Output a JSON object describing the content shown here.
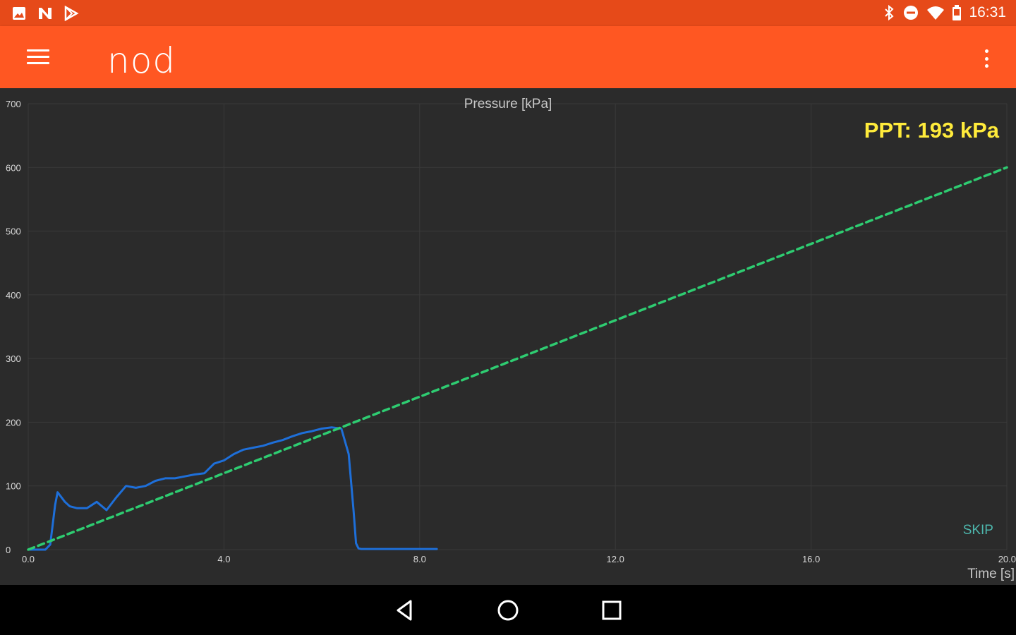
{
  "status_bar": {
    "time": "16:31",
    "left_icons": [
      "image-icon",
      "n-notification-icon",
      "play-store-icon"
    ],
    "right_icons": [
      "bluetooth-icon",
      "do-not-disturb-icon",
      "wifi-icon",
      "battery-icon"
    ]
  },
  "app_bar": {
    "title": "nod",
    "menu_icon": "menu-icon",
    "overflow_icon": "more-vert-icon",
    "color": "#ff5722"
  },
  "status_color": "#e64a19",
  "measurement": {
    "ppt_label": "PPT: 193 kPa",
    "ppt_color": "#ffeb3b"
  },
  "skip_label": "SKIP",
  "chart_data": {
    "type": "line",
    "title": "Pressure [kPa]",
    "xlabel": "Time [s]",
    "ylabel": "",
    "xlim": [
      0,
      20
    ],
    "ylim": [
      0,
      700
    ],
    "x_ticks": [
      "0.0",
      "4.0",
      "8.0",
      "12.0",
      "16.0",
      "20.0"
    ],
    "y_ticks": [
      "0",
      "100",
      "200",
      "300",
      "400",
      "500",
      "600",
      "700"
    ],
    "grid": true,
    "series": [
      {
        "color": "#1e6fd9",
        "style": "solid",
        "x": [
          0.0,
          0.35,
          0.45,
          0.55,
          0.6,
          0.75,
          0.85,
          1.0,
          1.2,
          1.4,
          1.6,
          1.8,
          2.0,
          2.2,
          2.4,
          2.6,
          2.8,
          3.0,
          3.2,
          3.4,
          3.6,
          3.8,
          4.0,
          4.2,
          4.4,
          4.6,
          4.8,
          5.0,
          5.2,
          5.4,
          5.6,
          5.8,
          6.0,
          6.2,
          6.4,
          6.55,
          6.65,
          6.7,
          6.75,
          6.8,
          6.9,
          7.0,
          7.5,
          8.0,
          8.35
        ],
        "y": [
          0,
          0,
          8,
          70,
          90,
          75,
          68,
          65,
          65,
          75,
          62,
          82,
          100,
          97,
          100,
          108,
          112,
          112,
          115,
          118,
          120,
          135,
          140,
          150,
          157,
          160,
          163,
          168,
          172,
          178,
          183,
          186,
          190,
          192,
          190,
          150,
          60,
          10,
          2,
          1,
          1,
          1,
          1,
          1,
          1
        ]
      },
      {
        "color": "#2ecc71",
        "style": "dashed",
        "x": [
          0,
          20
        ],
        "y": [
          0,
          600
        ]
      }
    ]
  },
  "nav_bar": {
    "icons": [
      "back-icon",
      "home-icon",
      "recents-icon"
    ]
  }
}
